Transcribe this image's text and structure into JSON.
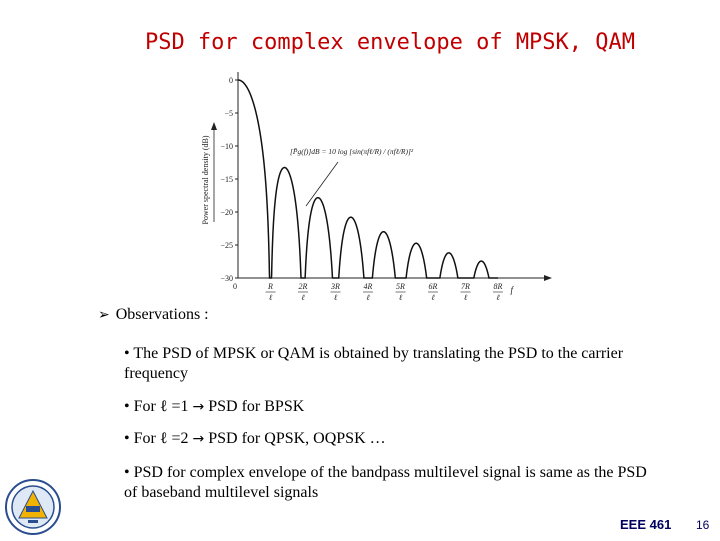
{
  "slide": {
    "title": "PSD for complex envelope of MPSK, QAM",
    "observations_label": "Observations :",
    "bullets": [
      {
        "pre": "• The PSD of MPSK or QAM is obtained by translating the PSD to the carrier frequency",
        "arrow": "",
        "post": ""
      },
      {
        "pre": "• For ℓ =1",
        "arrow": "→",
        "post": " PSD for BPSK"
      },
      {
        "pre": "• For ℓ =2",
        "arrow": "→",
        "post": " PSD for QPSK, OQPSK …"
      },
      {
        "pre": "• PSD for complex envelope of the bandpass multilevel signal is same as the PSD of baseband multilevel signals",
        "arrow": "",
        "post": ""
      }
    ],
    "footer": {
      "course": "EEE 461",
      "page": "16"
    },
    "observations_icon": "arrow-bullet-icon",
    "logo_icon": "university-seal-icon"
  },
  "chart_data": {
    "type": "line",
    "ylabel": "Power spectral density (dB)",
    "xlabel": "f",
    "y_ticks": [
      "0",
      "−5",
      "−10",
      "−15",
      "−20",
      "−25",
      "−30"
    ],
    "ylim": [
      -30,
      0
    ],
    "x_ticks": [
      {
        "num": "0",
        "den": ""
      },
      {
        "num": "R",
        "den": "ℓ"
      },
      {
        "num": "2R",
        "den": "ℓ"
      },
      {
        "num": "3R",
        "den": "ℓ"
      },
      {
        "num": "4R",
        "den": "ℓ"
      },
      {
        "num": "5R",
        "den": "ℓ"
      },
      {
        "num": "6R",
        "den": "ℓ"
      },
      {
        "num": "7R",
        "den": "ℓ"
      },
      {
        "num": "8R",
        "den": "ℓ"
      }
    ],
    "xlim": [
      0,
      9
    ],
    "lobe_peaks_db": [
      0,
      -13.3,
      -17.8,
      -20.8,
      -22.9,
      -24.6,
      -26.0,
      -27.1
    ],
    "annotation": "[P̄g(f)]dB = 10 log [sin(πfℓ/R) / (πfℓ/R)]²",
    "grid": false
  }
}
